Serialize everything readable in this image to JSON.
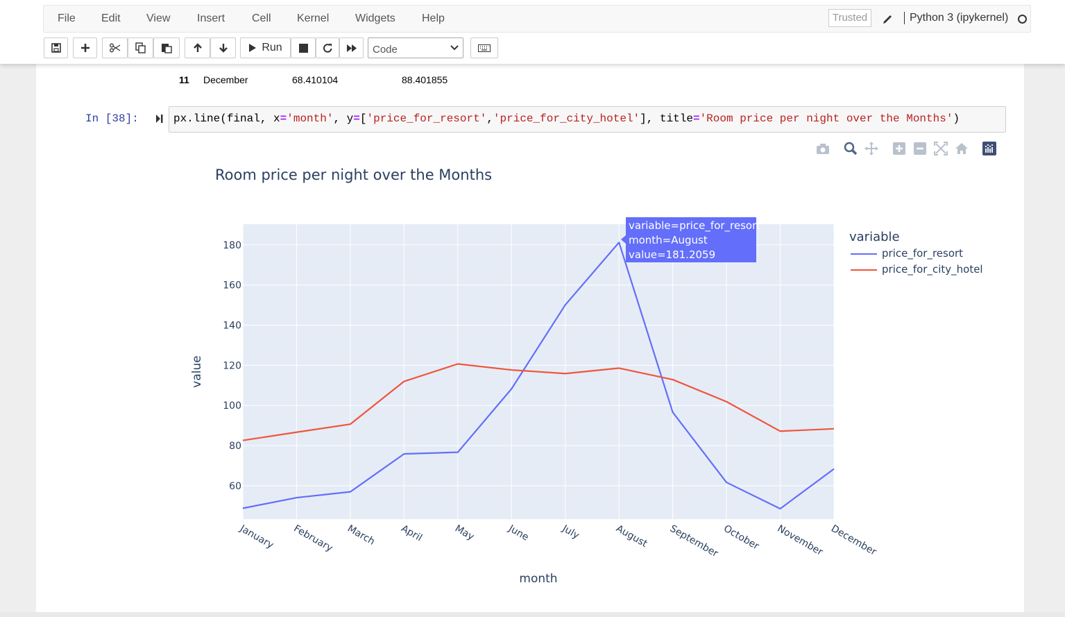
{
  "menu": {
    "items": [
      "File",
      "Edit",
      "View",
      "Insert",
      "Cell",
      "Kernel",
      "Widgets",
      "Help"
    ],
    "trusted_label": "Trusted",
    "kernel_name": "Python 3 (ipykernel)"
  },
  "toolbar": {
    "run_label": "Run",
    "cell_type": "Code",
    "icons": [
      "save-icon",
      "plus-icon",
      "cut-icon",
      "copy-icon",
      "paste-icon",
      "move-up-icon",
      "move-down-icon",
      "run-icon",
      "stop-icon",
      "restart-icon",
      "fast-forward-icon",
      "keyboard-icon"
    ]
  },
  "previous_output_row": {
    "index": "11",
    "month": "December",
    "price_for_resort": "68.410104",
    "price_for_city_hotel": "88.401855"
  },
  "cell": {
    "prompt": "In [38]:",
    "code": {
      "p1": "px.line(final, x",
      "eq1": "=",
      "s1": "'month'",
      "p2": ", y",
      "eq2": "=",
      "p3": "[",
      "s2": "'price_for_resort'",
      "p4": ",",
      "s3": "'price_for_city_hotel'",
      "p5": "], title",
      "eq3": "=",
      "s4": "'Room price per night over the Months'",
      "p6": ")"
    }
  },
  "modebar": {
    "icons": [
      "camera-icon",
      "zoom-icon",
      "pan-icon",
      "zoom-in-icon",
      "zoom-out-icon",
      "autoscale-icon",
      "reset-axes-icon",
      "plotly-logo-icon"
    ]
  },
  "chart_data": {
    "type": "line",
    "title": "Room price per night over the Months",
    "xlabel": "month",
    "ylabel": "value",
    "categories": [
      "January",
      "February",
      "March",
      "April",
      "May",
      "June",
      "July",
      "August",
      "September",
      "October",
      "November",
      "December"
    ],
    "series": [
      {
        "name": "price_for_resort",
        "color": "#636efa",
        "values": [
          48.8,
          54.1,
          57.0,
          75.9,
          76.7,
          108.3,
          150.1,
          181.2059,
          96.6,
          61.7,
          48.6,
          68.410104
        ]
      },
      {
        "name": "price_for_city_hotel",
        "color": "#ef553b",
        "values": [
          82.6,
          86.7,
          90.7,
          112.0,
          120.7,
          117.7,
          115.9,
          118.6,
          112.9,
          101.9,
          87.2,
          88.401855
        ]
      }
    ],
    "yticks": [
      60,
      80,
      100,
      120,
      140,
      160,
      180
    ],
    "ylim": [
      43.4,
      190.3
    ],
    "grid": true,
    "legend": {
      "title": "variable",
      "placement": "right"
    },
    "plot_bg": "#e5ecf6",
    "tooltip": {
      "line1": "variable=price_for_resort",
      "line2": "month=August",
      "line3": "value=181.2059"
    }
  }
}
